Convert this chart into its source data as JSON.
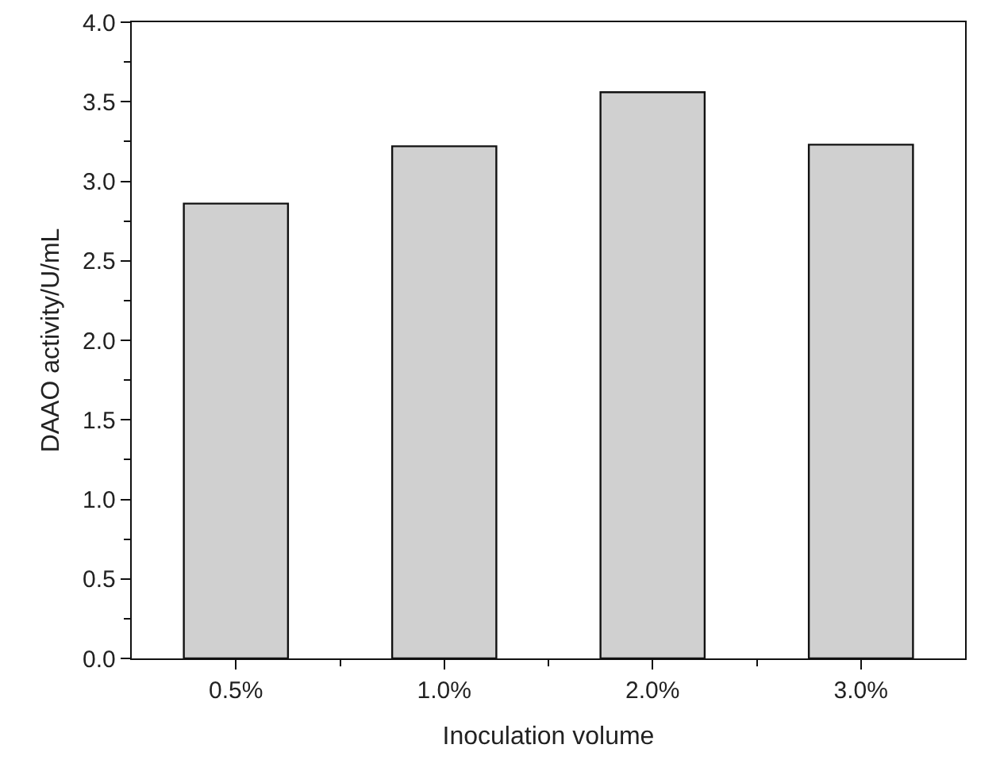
{
  "chart_data": {
    "type": "bar",
    "xlabel": "Inoculation volume",
    "ylabel": "DAAO activity/U/mL",
    "categories": [
      "0.5%",
      "1.0%",
      "2.0%",
      "3.0%"
    ],
    "values": [
      2.86,
      3.22,
      3.56,
      3.23
    ],
    "color": "#d0d0d0",
    "ylim": [
      0,
      4.0
    ],
    "yticks": [
      {
        "value": 0,
        "label": "0.0"
      },
      {
        "value": 0.5,
        "label": "0.5"
      },
      {
        "value": 1,
        "label": "1.0"
      },
      {
        "value": 1.5,
        "label": "1.5"
      },
      {
        "value": 2,
        "label": "2.0"
      },
      {
        "value": 2.5,
        "label": "2.5"
      },
      {
        "value": 3,
        "label": "3.0"
      },
      {
        "value": 3.5,
        "label": "3.5"
      },
      {
        "value": 4,
        "label": "4.0"
      }
    ],
    "grid": false
  }
}
